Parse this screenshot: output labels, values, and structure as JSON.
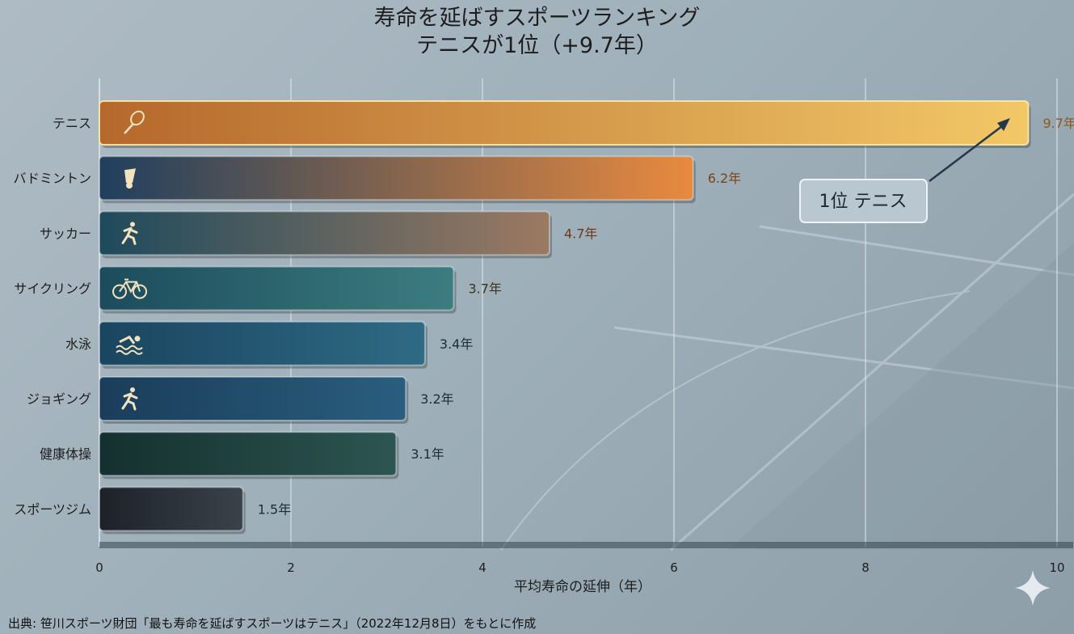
{
  "chart_data": {
    "type": "bar",
    "orientation": "horizontal",
    "title": "寿命を延ばすスポーツランキング",
    "subtitle": "テニスが1位（+9.7年）",
    "xlabel": "平均寿命の延伸（年）",
    "ylabel": "",
    "xlim": [
      0,
      10
    ],
    "xticks": [
      0,
      2,
      4,
      6,
      8,
      10
    ],
    "grid": true,
    "categories": [
      "テニス",
      "バドミントン",
      "サッカー",
      "サイクリング",
      "水泳",
      "ジョギング",
      "健康体操",
      "スポーツジム"
    ],
    "values": [
      9.7,
      6.2,
      4.7,
      3.7,
      3.4,
      3.2,
      3.1,
      1.5
    ],
    "value_labels": [
      "9.7年",
      "6.2年",
      "4.7年",
      "3.7年",
      "3.4年",
      "3.2年",
      "3.1年",
      "1.5年"
    ],
    "icons": [
      "tennis-racket-icon",
      "shuttlecock-icon",
      "runner-icon",
      "bicycle-icon",
      "swimmer-icon",
      "runner-icon",
      "",
      ""
    ],
    "bar_colors": [
      [
        "#b5682c",
        "#f2c867"
      ],
      [
        "#1f3f5e",
        "#e98a3e"
      ],
      [
        "#1e4a5c",
        "#9c7a63"
      ],
      [
        "#1c4c5c",
        "#3c7d80"
      ],
      [
        "#1a4560",
        "#2f6a84"
      ],
      [
        "#1a3d5a",
        "#2a5e7e"
      ],
      [
        "#14302f",
        "#2d5551"
      ],
      [
        "#1c2228",
        "#3a424a"
      ]
    ],
    "label_colors": [
      "#8a5a1e",
      "#7a4418",
      "#6a3a18",
      "#3a3520",
      "#1c2c38",
      "#1c2c38",
      "#1c2c38",
      "#1c2c38"
    ],
    "annotation": {
      "text": "1位 テニス",
      "target": "テニス"
    }
  },
  "source": "出典: 笹川スポーツ財団「最も寿命を延ばすスポーツはテニス」（2022年12月8日）をもとに作成"
}
